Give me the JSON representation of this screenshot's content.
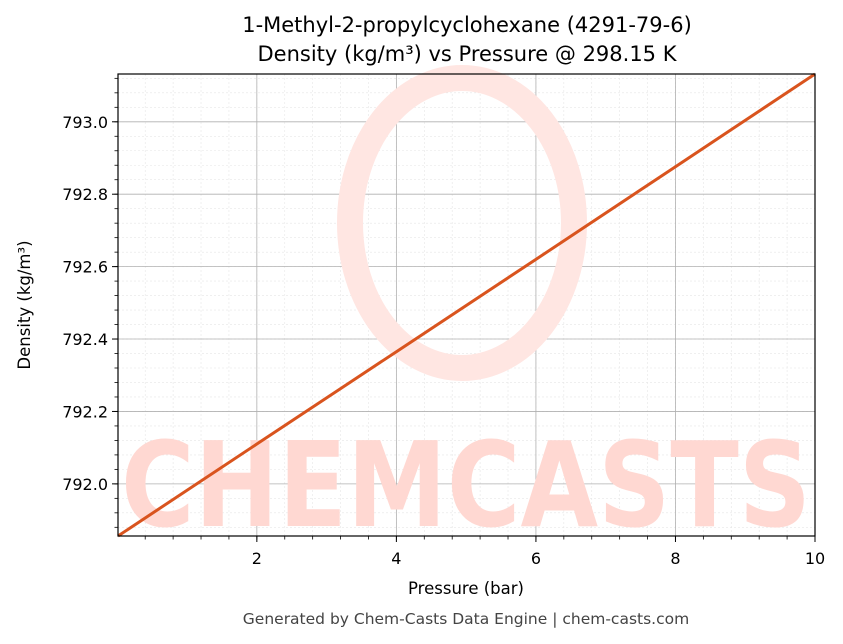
{
  "chart_data": {
    "type": "line",
    "title": "1-Methyl-2-propylcyclohexane (4291-79-6)",
    "subtitle": "Density (kg/m³) vs Pressure @ 298.15 K",
    "xlabel": "Pressure (bar)",
    "ylabel": "Density (kg/m³)",
    "xlim": [
      0.01,
      10.0
    ],
    "ylim": [
      791.856,
      793.132
    ],
    "x_ticks": [
      2,
      4,
      6,
      8,
      10
    ],
    "y_ticks": [
      792.0,
      792.2,
      792.4,
      792.6,
      792.8,
      793.0
    ],
    "x_tick_labels": [
      "2",
      "4",
      "6",
      "8",
      "10"
    ],
    "y_tick_labels": [
      "792.0",
      "792.2",
      "792.4",
      "792.6",
      "792.8",
      "793.0"
    ],
    "grid": true,
    "series": [
      {
        "x": [
          0.01,
          2,
          4,
          6,
          8,
          10
        ],
        "y": [
          791.856,
          792.11,
          792.365,
          792.62,
          792.876,
          793.132
        ],
        "color": "#d9541e"
      }
    ]
  },
  "watermark": {
    "text": "CHEMCASTS",
    "color": "#ffd8d2"
  },
  "footer": {
    "text": "Generated by Chem-Casts Data Engine | chem-casts.com"
  }
}
